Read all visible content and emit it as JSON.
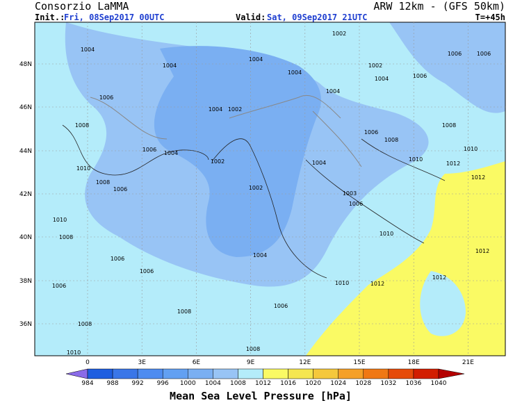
{
  "header": {
    "institution": "Consorzio LaMMA",
    "model": "ARW 12km - (GFS 50km)",
    "init_label": "Init.:",
    "init": "Fri, 08Sep2017 00UTC",
    "valid_label": "Valid:",
    "valid": "Sat, 09Sep2017 21UTC",
    "lead": "T=+45h"
  },
  "map": {
    "lat_labels": [
      "48N",
      "46N",
      "44N",
      "42N",
      "40N",
      "38N",
      "36N"
    ],
    "lon_labels": [
      "0",
      "3E",
      "6E",
      "9E",
      "12E",
      "15E",
      "18E",
      "21E"
    ],
    "isobar_labels": [
      1004,
      1004,
      1004,
      1002,
      1002,
      1004,
      1004,
      1004,
      1006,
      1006,
      1006,
      1006,
      1004,
      1002,
      1008,
      1006,
      1008,
      1008,
      1006,
      1004,
      1002,
      1004,
      1010,
      1012,
      1010,
      1012,
      1010,
      1008,
      1006,
      1002,
      1003,
      1006,
      1010,
      1008,
      1010,
      1012,
      1006,
      1004,
      1006,
      1012,
      1006,
      1010,
      1012,
      1006,
      1008,
      1008,
      1008,
      1010
    ]
  },
  "colorbar": {
    "title": "Mean Sea Level Pressure [hPa]",
    "levels": [
      984,
      988,
      992,
      996,
      1000,
      1004,
      1008,
      1012,
      1016,
      1020,
      1024,
      1028,
      1032,
      1036,
      1040
    ],
    "colors": [
      "#8a6be8",
      "#1e5ee0",
      "#3a76e8",
      "#4e8cf0",
      "#62a0f2",
      "#7aaff2",
      "#98c4f5",
      "#b4ecfa",
      "#fafa64",
      "#f5e650",
      "#f5c83c",
      "#f5a028",
      "#f07814",
      "#e64b0a",
      "#d21e00",
      "#b40000"
    ]
  }
}
